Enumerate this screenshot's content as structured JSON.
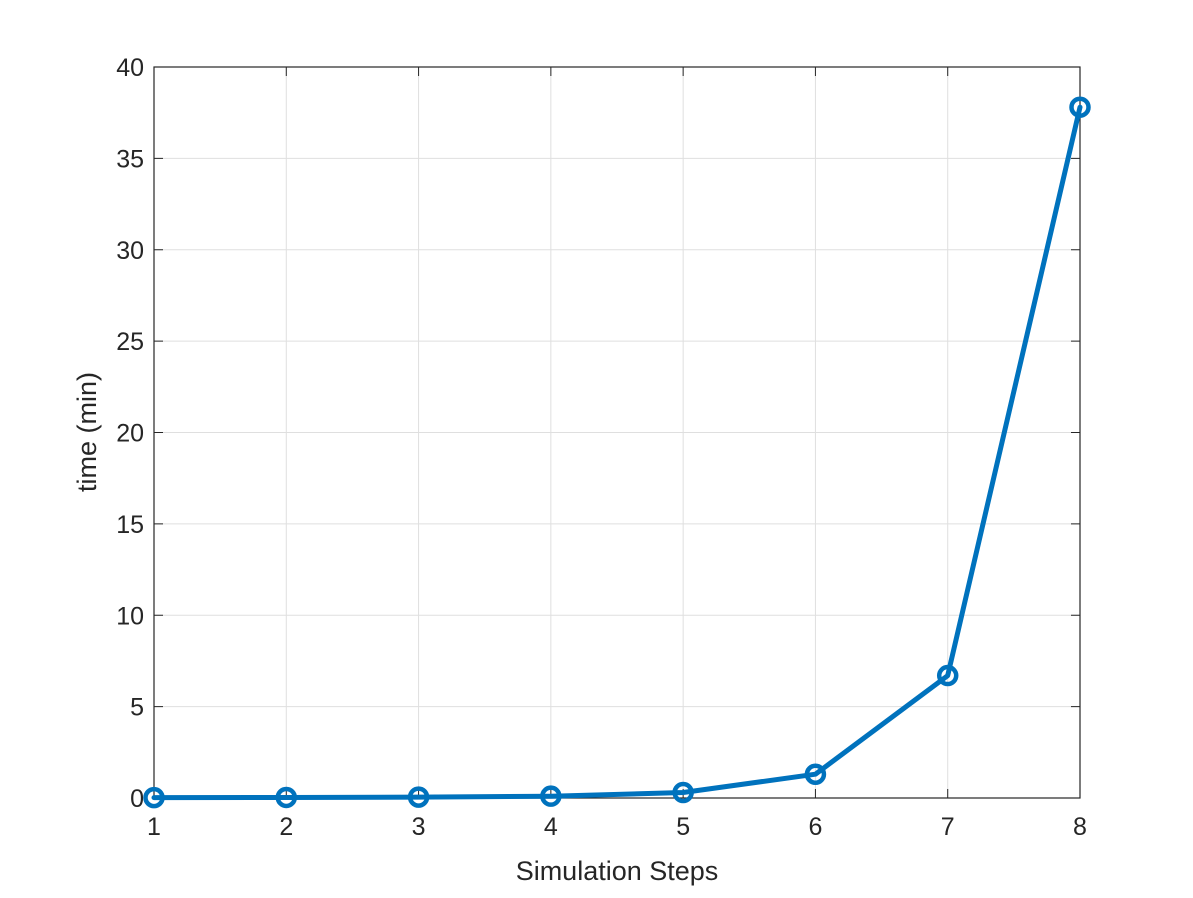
{
  "chart_data": {
    "type": "line",
    "title": "",
    "xlabel": "Simulation Steps",
    "ylabel": "time (min)",
    "xlim": [
      1,
      8
    ],
    "ylim": [
      0,
      40
    ],
    "x_ticks": [
      "1",
      "2",
      "3",
      "4",
      "5",
      "6",
      "7",
      "8"
    ],
    "y_ticks": [
      "0",
      "5",
      "10",
      "15",
      "20",
      "25",
      "30",
      "35",
      "40"
    ],
    "grid": true,
    "box": true,
    "marker": "circle",
    "series": [
      {
        "color": "#0072BD",
        "x": [
          1,
          2,
          3,
          4,
          5,
          6,
          7,
          8
        ],
        "y": [
          0.02,
          0.03,
          0.05,
          0.1,
          0.3,
          1.3,
          6.7,
          37.8
        ]
      }
    ]
  }
}
